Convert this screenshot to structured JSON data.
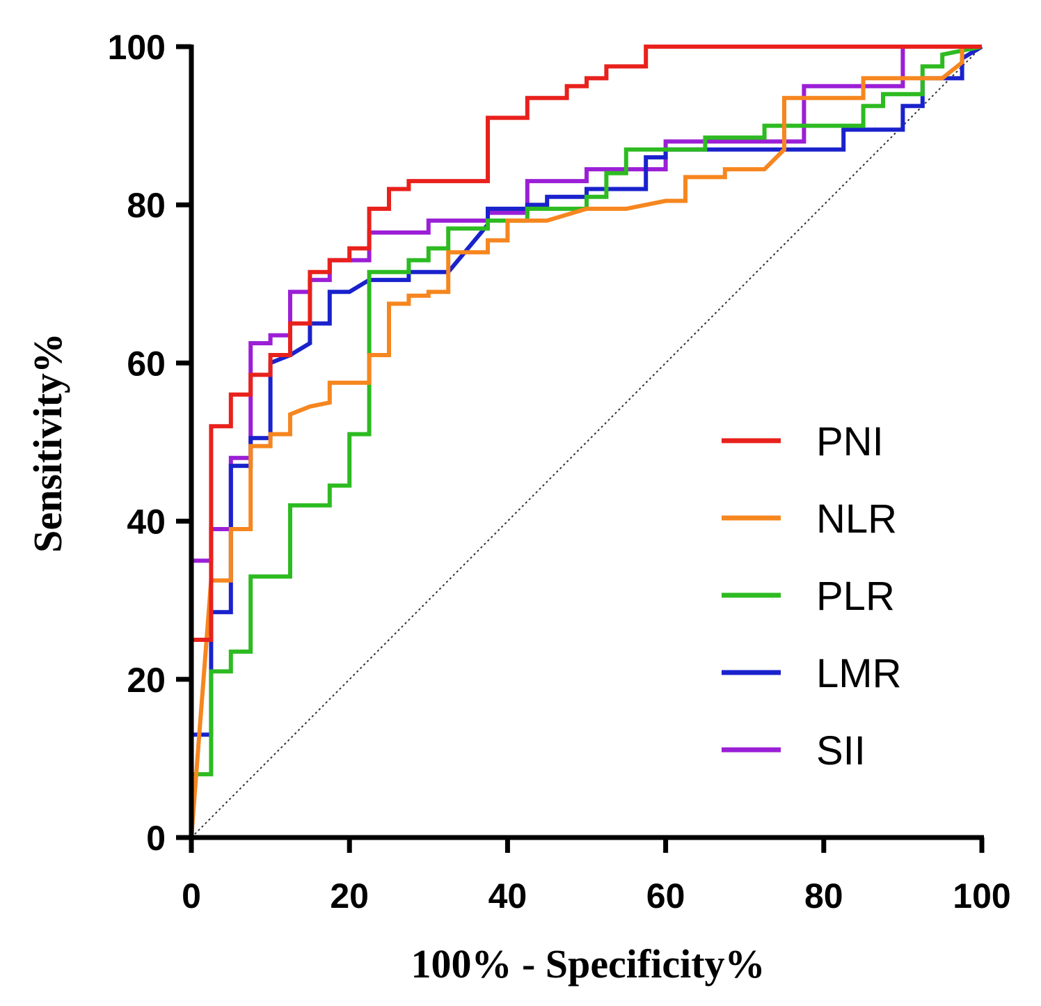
{
  "chart_data": {
    "type": "line",
    "title": "",
    "xlabel": "100% - Specificity%",
    "ylabel": "Sensitivity%",
    "xlim": [
      0,
      100
    ],
    "ylim": [
      0,
      100
    ],
    "x_ticks": [
      "0",
      "20",
      "40",
      "60",
      "80",
      "100"
    ],
    "y_ticks": [
      "0",
      "20",
      "40",
      "60",
      "80",
      "100"
    ],
    "reference_line": {
      "name": "chance",
      "x": [
        0,
        100
      ],
      "y": [
        0,
        100
      ],
      "style": "dotted",
      "color": "#333333"
    },
    "legend_position": "bottom-right",
    "series": [
      {
        "name": "SII",
        "color": "#9b1fd6",
        "x": [
          0,
          0,
          2.5,
          2.5,
          5,
          5,
          7.5,
          7.5,
          10,
          10,
          12.5,
          12.5,
          15,
          15,
          17.5,
          17.5,
          22.5,
          22.5,
          30,
          30,
          37.5,
          37.5,
          42.5,
          42.5,
          50,
          50,
          60,
          60,
          77.5,
          77.5,
          90,
          90,
          100
        ],
        "y": [
          0,
          35,
          35,
          39,
          39,
          48,
          48,
          62.5,
          62.5,
          63.5,
          63.5,
          69,
          69,
          70.5,
          70.5,
          73,
          73,
          76.5,
          76.5,
          78,
          78,
          79,
          79,
          83,
          83,
          84.5,
          84.5,
          88,
          88,
          95,
          95,
          100,
          100
        ]
      },
      {
        "name": "LMR",
        "color": "#1a22cc",
        "x": [
          0,
          0,
          2.5,
          2.5,
          5,
          5,
          7.5,
          7.5,
          10,
          10,
          12.5,
          15,
          15,
          17.5,
          17.5,
          20,
          22.5,
          27.5,
          27.5,
          32.5,
          37.5,
          37.5,
          42.5,
          42.5,
          45,
          45,
          50,
          50,
          57.5,
          57.5,
          60,
          60,
          82.5,
          82.5,
          90,
          90,
          92.5,
          92.5,
          97.5,
          97.5,
          100
        ],
        "y": [
          0,
          13,
          13,
          28.5,
          28.5,
          47,
          47,
          50.5,
          50.5,
          60,
          61,
          62.5,
          65,
          65,
          69,
          69,
          70.5,
          70.5,
          71.5,
          71.5,
          77.5,
          79.5,
          79.5,
          80,
          80,
          81,
          81,
          82,
          82,
          86,
          86,
          87,
          87,
          89.5,
          89.5,
          92.5,
          92.5,
          96,
          96,
          98.5,
          100
        ]
      },
      {
        "name": "PLR",
        "color": "#2dbb21",
        "x": [
          0,
          0,
          2.5,
          2.5,
          5,
          5,
          7.5,
          7.5,
          12.5,
          12.5,
          17.5,
          17.5,
          20,
          20,
          22.5,
          22.5,
          27.5,
          27.5,
          30,
          30,
          32.5,
          32.5,
          37.5,
          37.5,
          42.5,
          42.5,
          50,
          50,
          52.5,
          52.5,
          55,
          55,
          65,
          65,
          72.5,
          72.5,
          85,
          85,
          87.5,
          87.5,
          92.5,
          92.5,
          95,
          95,
          100
        ],
        "y": [
          0,
          8,
          8,
          21,
          21,
          23.5,
          23.5,
          33,
          33,
          42,
          42,
          44.5,
          44.5,
          51,
          51,
          71.5,
          71.5,
          73,
          73,
          74.5,
          74.5,
          77,
          77,
          78,
          78,
          79.5,
          79.5,
          81,
          81,
          84,
          84,
          87,
          87,
          88.5,
          88.5,
          90,
          90,
          92.5,
          92.5,
          94,
          94,
          97.5,
          97.5,
          99,
          100
        ]
      },
      {
        "name": "NLR",
        "color": "#f6861f",
        "x": [
          0,
          2.5,
          2.5,
          5,
          5,
          7.5,
          7.5,
          10,
          10,
          12.5,
          12.5,
          15,
          15,
          17.5,
          17.5,
          22.5,
          22.5,
          25,
          25,
          27.5,
          27.5,
          30,
          30,
          32.5,
          32.5,
          37.5,
          37.5,
          40,
          40,
          45,
          50,
          55,
          60,
          62.5,
          62.5,
          67.5,
          67.5,
          72.5,
          75,
          75,
          85,
          85,
          95,
          97.5,
          97.5,
          100
        ],
        "y": [
          0,
          32.5,
          32.5,
          32.5,
          39,
          39,
          49.5,
          49.5,
          51,
          51,
          53.5,
          54.5,
          54.5,
          55,
          57.5,
          57.5,
          61,
          61,
          67.5,
          67.5,
          68.5,
          68.5,
          69,
          69,
          74,
          74,
          75.5,
          75.5,
          78,
          78,
          79.5,
          79.5,
          80.5,
          80.5,
          83.5,
          83.5,
          84.5,
          84.5,
          87,
          93.5,
          93.5,
          96,
          96,
          98,
          100,
          100
        ]
      },
      {
        "name": "PNI",
        "color": "#e8211c",
        "x": [
          0,
          0,
          2.5,
          2.5,
          5,
          5,
          7.5,
          7.5,
          10,
          10,
          12.5,
          12.5,
          15,
          15,
          17.5,
          17.5,
          20,
          20,
          22.5,
          22.5,
          25,
          25,
          27.5,
          27.5,
          37.5,
          37.5,
          42.5,
          42.5,
          47.5,
          47.5,
          50,
          50,
          52.5,
          52.5,
          57.5,
          57.5,
          100
        ],
        "y": [
          0,
          25,
          25,
          52,
          52,
          56,
          56,
          58.5,
          58.5,
          61,
          61,
          65,
          65,
          71.5,
          71.5,
          73,
          73,
          74.5,
          74.5,
          79.5,
          79.5,
          82,
          82,
          83,
          83,
          91,
          91,
          93.5,
          93.5,
          95,
          95,
          96,
          96,
          97.5,
          97.5,
          100,
          100
        ]
      }
    ],
    "legend": [
      "PNI",
      "NLR",
      "PLR",
      "LMR",
      "SII"
    ]
  }
}
